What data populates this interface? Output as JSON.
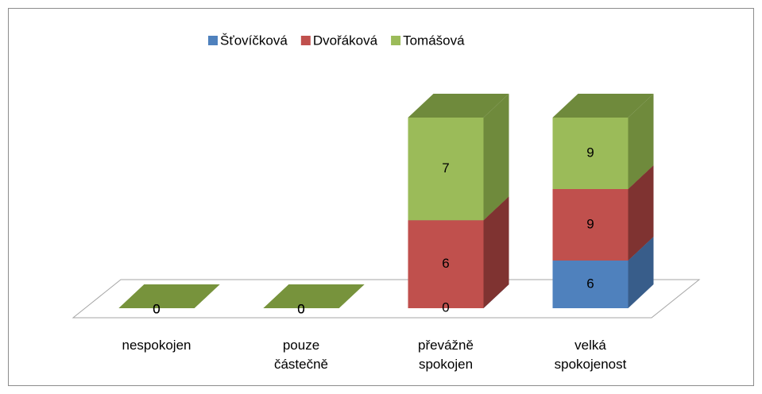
{
  "chart_data": {
    "type": "bar3d_percent_stacked",
    "categories": [
      "nespokojen",
      "pouze částečně",
      "převážně spokojen",
      "velká spokojenost"
    ],
    "series": [
      {
        "name": "Šťovíčková",
        "color": "#4f81bd",
        "side": "#385d8a",
        "values": [
          0,
          0,
          0,
          6
        ]
      },
      {
        "name": "Dvořáková",
        "color": "#c0504d",
        "side": "#7f3331",
        "values": [
          0,
          0,
          6,
          9
        ]
      },
      {
        "name": "Tomášová",
        "color": "#9bbb59",
        "side": "#6f8a3c",
        "values": [
          0,
          0,
          7,
          9
        ]
      }
    ],
    "legend": "top"
  }
}
